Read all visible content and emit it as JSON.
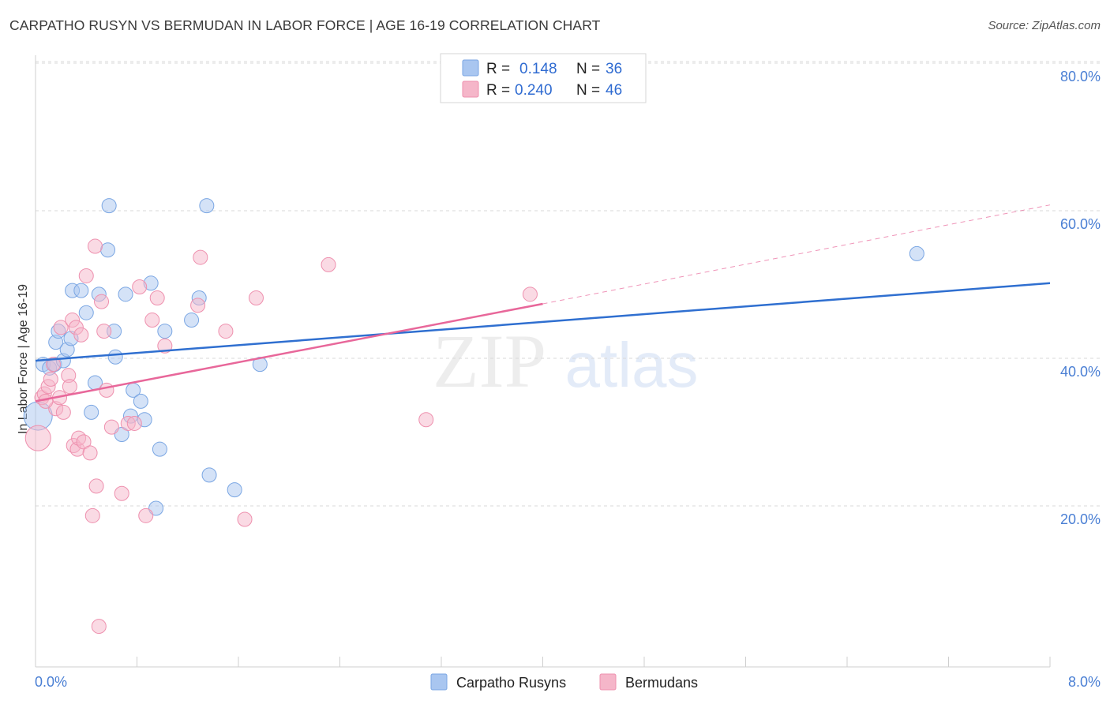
{
  "title": "CARPATHO RUSYN VS BERMUDAN IN LABOR FORCE | AGE 16-19 CORRELATION CHART",
  "source": "Source: ZipAtlas.com",
  "watermark": {
    "zip": "ZIP",
    "atlas": "atlas"
  },
  "colors": {
    "blue_fill": "#a9c6f0",
    "blue_stroke": "#7aa6e3",
    "blue_line": "#2f6fd0",
    "pink_fill": "#f5b6c9",
    "pink_stroke": "#ee90ae",
    "pink_line": "#e8679a",
    "grid": "#d9d9d9",
    "axis_label": "#4a7fd4"
  },
  "chart_data": {
    "type": "scatter",
    "title": "CARPATHO RUSYN VS BERMUDAN IN LABOR FORCE | AGE 16-19 CORRELATION CHART",
    "xlabel": "",
    "ylabel": "In Labor Force | Age 16-19",
    "xlim": [
      0,
      8
    ],
    "ylim": [
      0,
      80
    ],
    "x_tick_labels": [
      "0.0%",
      "8.0%"
    ],
    "y_ticks": [
      20,
      40,
      60,
      80
    ],
    "y_tick_labels": [
      "20.0%",
      "40.0%",
      "60.0%",
      "80.0%"
    ],
    "grid": true,
    "legend": [
      {
        "name": "Carpatho Rusyns",
        "r_label": "R =",
        "r": "0.148",
        "n_label": "N =",
        "n": "36"
      },
      {
        "name": "Bermudans",
        "r_label": "R =",
        "r": "0.240",
        "n_label": "N =",
        "n": "46"
      }
    ],
    "series": [
      {
        "name": "Carpatho Rusyns",
        "color": "blue",
        "points": [
          [
            0.02,
            34,
            18
          ],
          [
            0.06,
            41,
            9
          ],
          [
            0.11,
            40.5,
            9
          ],
          [
            0.15,
            41,
            9
          ],
          [
            0.16,
            44,
            9
          ],
          [
            0.18,
            45.5,
            9
          ],
          [
            0.22,
            41.5,
            9
          ],
          [
            0.25,
            43,
            9
          ],
          [
            0.28,
            44.5,
            9
          ],
          [
            0.29,
            51,
            9
          ],
          [
            0.36,
            51,
            9
          ],
          [
            0.4,
            48,
            9
          ],
          [
            0.44,
            34.5,
            9
          ],
          [
            0.47,
            38.5,
            9
          ],
          [
            0.5,
            50.5,
            9
          ],
          [
            0.57,
            56.5,
            9
          ],
          [
            0.58,
            62.5,
            9
          ],
          [
            0.62,
            45.5,
            9
          ],
          [
            0.63,
            42,
            9
          ],
          [
            0.68,
            31.5,
            9
          ],
          [
            0.71,
            50.5,
            9
          ],
          [
            0.75,
            34,
            9
          ],
          [
            0.77,
            37.5,
            9
          ],
          [
            0.83,
            36,
            9
          ],
          [
            0.86,
            33.5,
            9
          ],
          [
            0.91,
            52,
            9
          ],
          [
            0.95,
            21.5,
            9
          ],
          [
            0.98,
            29.5,
            9
          ],
          [
            1.02,
            45.5,
            9
          ],
          [
            1.23,
            47,
            9
          ],
          [
            1.29,
            50,
            9
          ],
          [
            1.35,
            62.5,
            9
          ],
          [
            1.37,
            26,
            9
          ],
          [
            1.57,
            24,
            9
          ],
          [
            1.77,
            41,
            9
          ],
          [
            6.95,
            56,
            9
          ]
        ],
        "trend": {
          "x0": 0.0,
          "y0": 41.5,
          "x1": 8.0,
          "y1": 52.0
        }
      },
      {
        "name": "Bermudans",
        "color": "pink",
        "points": [
          [
            0.02,
            31,
            16
          ],
          [
            0.05,
            36.5,
            9
          ],
          [
            0.07,
            37,
            9
          ],
          [
            0.1,
            38,
            9
          ],
          [
            0.12,
            39,
            9
          ],
          [
            0.14,
            41,
            9
          ],
          [
            0.16,
            35,
            9
          ],
          [
            0.19,
            36.5,
            9
          ],
          [
            0.2,
            46,
            9
          ],
          [
            0.22,
            34.5,
            9
          ],
          [
            0.26,
            39.5,
            9
          ],
          [
            0.27,
            38,
            9
          ],
          [
            0.29,
            47,
            9
          ],
          [
            0.3,
            30,
            9
          ],
          [
            0.32,
            46,
            9
          ],
          [
            0.33,
            29.5,
            9
          ],
          [
            0.34,
            31,
            9
          ],
          [
            0.38,
            30.5,
            9
          ],
          [
            0.4,
            53,
            9
          ],
          [
            0.43,
            29,
            9
          ],
          [
            0.45,
            20.5,
            9
          ],
          [
            0.47,
            57,
            9
          ],
          [
            0.48,
            24.5,
            9
          ],
          [
            0.5,
            5.5,
            9
          ],
          [
            0.52,
            49.5,
            9
          ],
          [
            0.54,
            45.5,
            9
          ],
          [
            0.56,
            37.5,
            9
          ],
          [
            0.6,
            32.5,
            9
          ],
          [
            0.68,
            23.5,
            9
          ],
          [
            0.73,
            33,
            9
          ],
          [
            0.78,
            33,
            9
          ],
          [
            0.82,
            51.5,
            9
          ],
          [
            0.87,
            20.5,
            9
          ],
          [
            0.92,
            47,
            9
          ],
          [
            0.96,
            50,
            9
          ],
          [
            1.02,
            43.5,
            9
          ],
          [
            1.28,
            49,
            9
          ],
          [
            1.3,
            55.5,
            9
          ],
          [
            1.5,
            45.5,
            9
          ],
          [
            1.65,
            20,
            9
          ],
          [
            1.74,
            50,
            9
          ],
          [
            2.31,
            54.5,
            9
          ],
          [
            3.08,
            33.5,
            9
          ],
          [
            3.9,
            50.5,
            9
          ],
          [
            0.08,
            36,
            9
          ],
          [
            0.36,
            45,
            9
          ]
        ],
        "trend": {
          "x0": 0.0,
          "y0": 36.0,
          "x1": 4.0,
          "y1": 49.2
        },
        "trend_extension": {
          "x0": 4.0,
          "y0": 49.2,
          "x1": 8.0,
          "y1": 62.6
        }
      }
    ]
  }
}
